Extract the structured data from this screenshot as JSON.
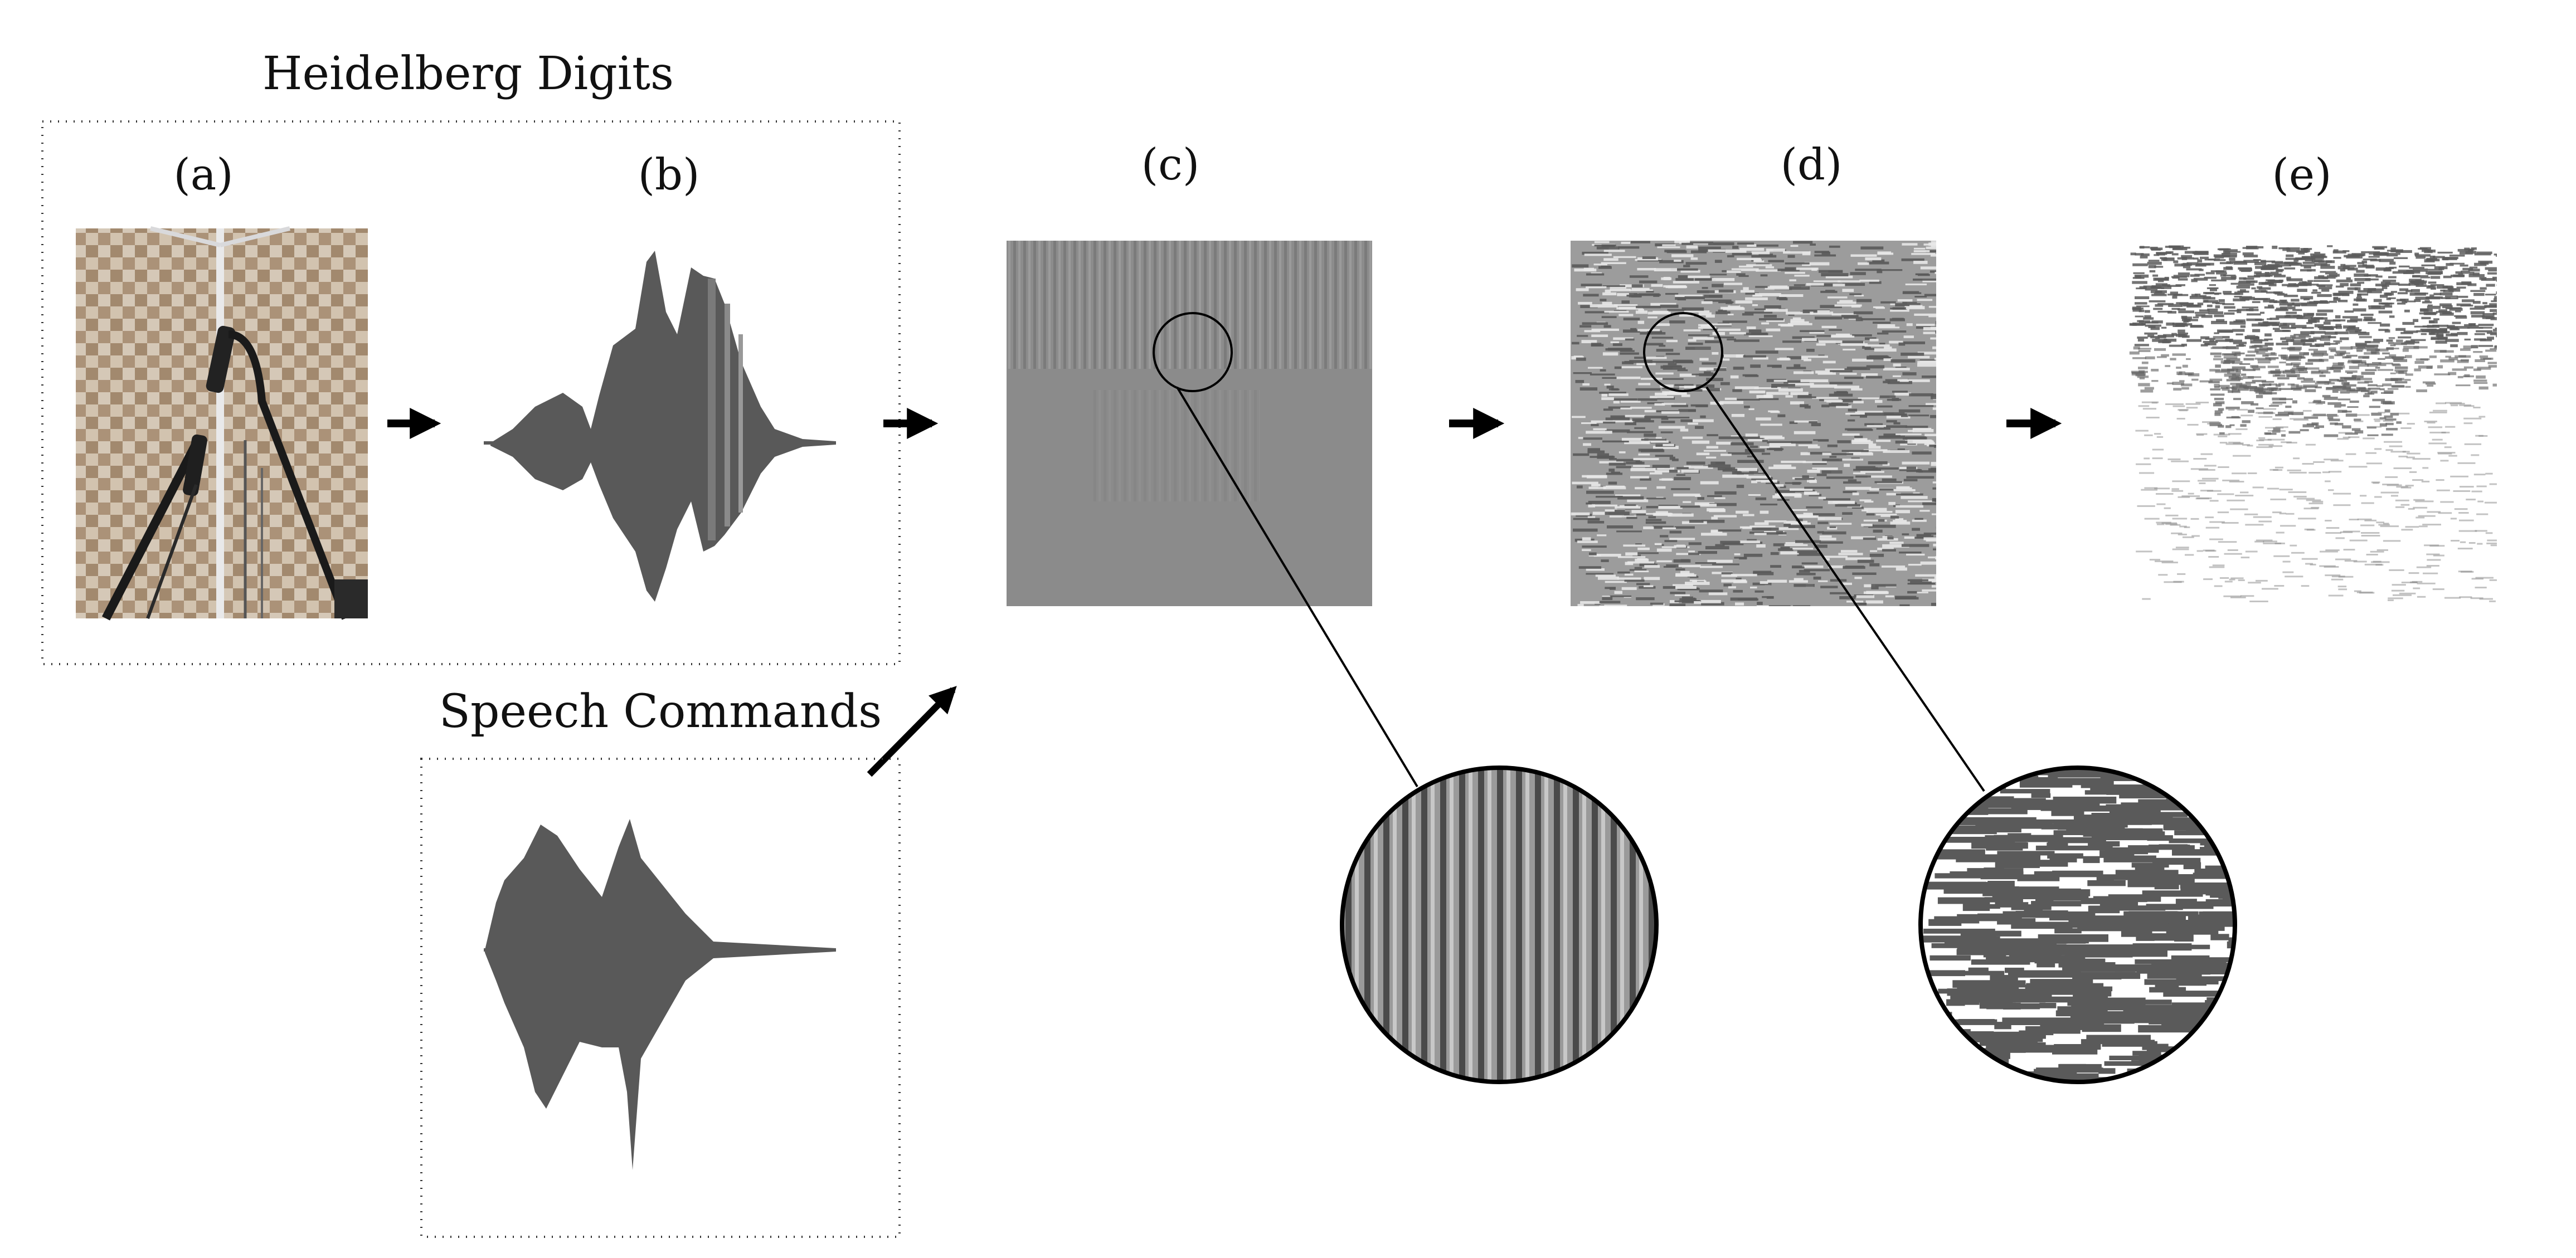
{
  "groups": {
    "heidelberg": "Heidelberg Digits",
    "speech": "Speech Commands"
  },
  "panels": {
    "a": "(a)",
    "b": "(b)",
    "c": "(c)",
    "d": "(d)",
    "e": "(e)"
  },
  "colors": {
    "waveform": "#595959",
    "filter_gray": "#8a8a8a",
    "noise_dark": "#5a5a5a",
    "photo_wall": "#cdb9a0",
    "box_border": "#333333"
  },
  "icons": [
    "microphone-photo",
    "waveform",
    "arrow-right",
    "arrow-diagonal",
    "magnifier-circle"
  ]
}
